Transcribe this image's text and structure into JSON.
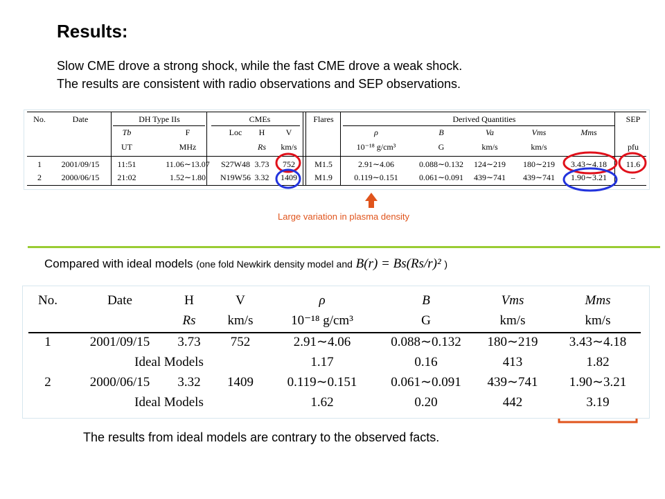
{
  "title": "Results:",
  "intro": [
    "Slow CME drove a strong shock, while the fast CME drove a weak shock.",
    "The results are consistent with radio observations and SEP observations."
  ],
  "table1": {
    "groups": [
      "DH Type IIs",
      "CMEs",
      "Flares",
      "Derived Quantities",
      "SEP"
    ],
    "col_names": [
      "No.",
      "Date",
      "Tb",
      "F",
      "Loc",
      "H",
      "V",
      "",
      "ρ",
      "B",
      "Va",
      "Vms",
      "Mms",
      "SEP"
    ],
    "col_units": [
      "",
      "",
      "UT",
      "MHz",
      "",
      "Rs",
      "km/s",
      "",
      "10⁻¹⁸ g/cm³",
      "G",
      "km/s",
      "km/s",
      "",
      "pfu"
    ],
    "rows": [
      [
        "1",
        "2001/09/15",
        "11:51",
        "11.06∼13.07",
        "S27W48",
        "3.73",
        "752",
        "M1.5",
        "2.91∼4.06",
        "0.088∼0.132",
        "124∼219",
        "180∼219",
        "3.43∼4.18",
        "11.6"
      ],
      [
        "2",
        "2000/06/15",
        "21:02",
        "1.52∼1.80",
        "N19W56",
        "3.32",
        "1409",
        "M1.9",
        "0.119∼0.151",
        "0.061∼0.091",
        "439∼741",
        "439∼741",
        "1.90∼3.21",
        "–"
      ]
    ]
  },
  "annotation": "Large variation in plasma density",
  "compare": {
    "main": "Compared with ideal models",
    "detail": "(one fold Newkirk density model and",
    "formula": "B(r) = Bs(Rs/r)²",
    "close": ")"
  },
  "table2": {
    "headers": [
      "No.",
      "Date",
      "H",
      "V",
      "ρ",
      "B",
      "Vms",
      "Mms"
    ],
    "units": [
      "",
      "",
      "Rs",
      "km/s",
      "10⁻¹⁸ g/cm³",
      "G",
      "km/s",
      "km/s"
    ],
    "rows": [
      [
        "1",
        "2001/09/15",
        "3.73",
        "752",
        "2.91∼4.06",
        "0.088∼0.132",
        "180∼219",
        "3.43∼4.18"
      ],
      [
        "",
        "Ideal Models",
        "",
        "",
        "1.17",
        "0.16",
        "413",
        "1.82"
      ],
      [
        "2",
        "2000/06/15",
        "3.32",
        "1409",
        "0.119∼0.151",
        "0.061∼0.091",
        "439∼741",
        "1.90∼3.21"
      ],
      [
        "",
        "Ideal Models",
        "",
        "",
        "1.62",
        "0.20",
        "442",
        "3.19"
      ]
    ]
  },
  "conclusion": "The results from ideal models are contrary to the observed facts.",
  "colors": {
    "red_circle": "#e0111b",
    "blue_circle": "#2233dd",
    "orange_box": "#e0541c",
    "divider": "#99cc33"
  }
}
